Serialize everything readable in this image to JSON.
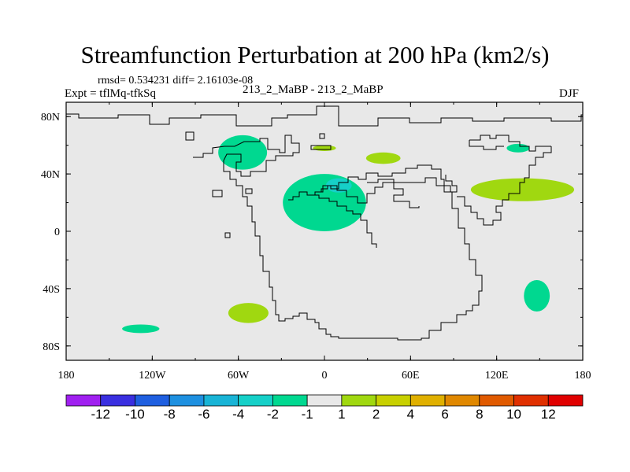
{
  "header": {
    "title": "Streamfunction Perturbation at 200 hPa (km2/s)",
    "stats": "rmsd= 0.534231 diff= 2.16103e-08",
    "expt": "Expt = tflMq-tfkSq",
    "center": "213_2_MaBP - 213_2_MaBP",
    "season": "DJF"
  },
  "colors": {
    "background": "#e8e8e8",
    "coastline": "#000000",
    "frame": "#000000"
  },
  "chart_data": {
    "type": "heatmap",
    "title": "Streamfunction Perturbation at 200 hPa (km2/s)",
    "subtitle_left": "Expt = tflMq-tfkSq",
    "subtitle_center": "213_2_MaBP - 213_2_MaBP",
    "subtitle_right": "DJF",
    "xlim": [
      -180,
      180
    ],
    "ylim": [
      -90,
      90
    ],
    "x_ticks": [
      {
        "value": -180,
        "label": "180"
      },
      {
        "value": -120,
        "label": "120W"
      },
      {
        "value": -60,
        "label": "60W"
      },
      {
        "value": 0,
        "label": "0"
      },
      {
        "value": 60,
        "label": "60E"
      },
      {
        "value": 120,
        "label": "120E"
      },
      {
        "value": 180,
        "label": "180"
      }
    ],
    "y_ticks": [
      {
        "value": 80,
        "label": "80N"
      },
      {
        "value": 40,
        "label": "40N"
      },
      {
        "value": 0,
        "label": "0"
      },
      {
        "value": -40,
        "label": "40S"
      },
      {
        "value": -80,
        "label": "80S"
      }
    ],
    "colorbar": {
      "labels": [
        "-12",
        "-10",
        "-8",
        "-6",
        "-4",
        "-2",
        "-1",
        "1",
        "2",
        "4",
        "6",
        "8",
        "10",
        "12"
      ],
      "colors": [
        "#a020f0",
        "#3a2fe0",
        "#1f5fe0",
        "#1e90e0",
        "#19b4d6",
        "#16d0c8",
        "#00d890",
        "#e8e8e8",
        "#a0d810",
        "#c8d000",
        "#e0b000",
        "#e08800",
        "#e05a00",
        "#e03000",
        "#e00000"
      ]
    },
    "anomalies": [
      {
        "lon": -57,
        "lat": 55,
        "rlon": 17,
        "rlat": 12,
        "category": "-2 to -1"
      },
      {
        "lon": 0,
        "lat": 20,
        "rlon": 29,
        "rlat": 20,
        "category": "-2 to -1"
      },
      {
        "lon": 10,
        "lat": 32,
        "rlon": 9,
        "rlat": 5,
        "category": "-4 to -2"
      },
      {
        "lon": 135,
        "lat": 58,
        "rlon": 8,
        "rlat": 3,
        "category": "-2 to -1"
      },
      {
        "lon": -128,
        "lat": -68,
        "rlon": 13,
        "rlat": 3,
        "category": "-2 to -1"
      },
      {
        "lon": 148,
        "lat": -45,
        "rlon": 9,
        "rlat": 11,
        "category": "-2 to -1"
      },
      {
        "lon": 0,
        "lat": 58,
        "rlon": 8,
        "rlat": 2,
        "category": "1 to 2"
      },
      {
        "lon": 41,
        "lat": 51,
        "rlon": 12,
        "rlat": 4,
        "category": "1 to 2"
      },
      {
        "lon": -53,
        "lat": -57,
        "rlon": 14,
        "rlat": 7,
        "category": "1 to 2"
      },
      {
        "lon": 138,
        "lat": 29,
        "rlon": 36,
        "rlat": 8,
        "category": "1 to 2"
      }
    ]
  }
}
